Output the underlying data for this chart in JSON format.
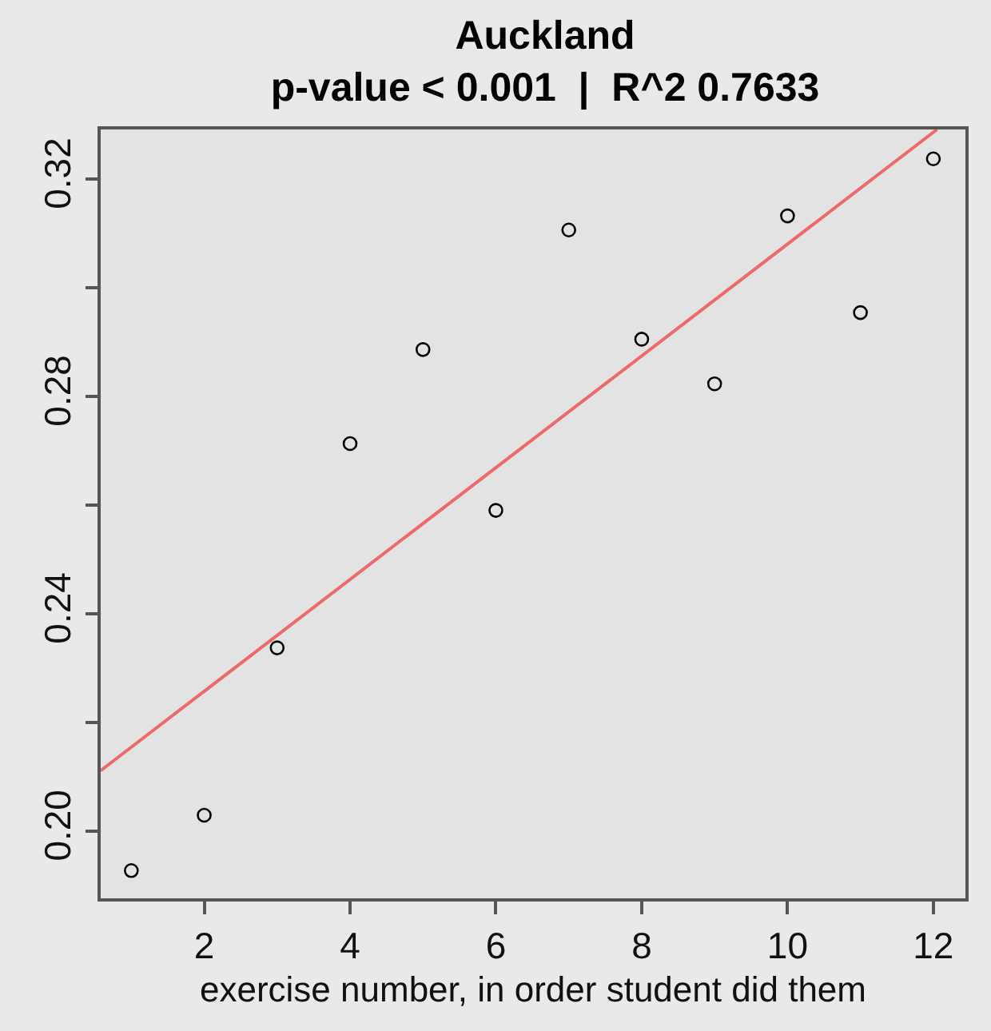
{
  "chart_data": {
    "type": "scatter",
    "title": "Auckland\np-value < 0.001  |  R^2 0.7633",
    "xlabel": "exercise number, in order student did them",
    "x": [
      1,
      2,
      3,
      4,
      5,
      6,
      7,
      8,
      9,
      10,
      11,
      12
    ],
    "series": [
      {
        "color": "#000000",
        "marker": "circle",
        "values": [
          0.1927,
          0.2029,
          0.2337,
          0.2713,
          0.2886,
          0.259,
          0.3106,
          0.2905,
          0.2823,
          0.3132,
          0.2954,
          0.3237
        ]
      },
      {
        "type": "line",
        "color": "#ee6a6a",
        "x": [
          0.58,
          12.05
        ],
        "values": [
          0.2111,
          0.3291
        ]
      }
    ],
    "xlim": [
      0.58,
      12.44
    ],
    "xticks": [
      2,
      4,
      6,
      8,
      10,
      12
    ],
    "ylim": [
      0.1876,
      0.3291
    ],
    "yticks": [
      {
        "value": 0.2,
        "label": "0.20"
      },
      {
        "value": 0.22,
        "label": null
      },
      0.24,
      {
        "value": 0.26,
        "label": null
      },
      0.28,
      {
        "value": 0.3,
        "label": null
      },
      0.32
    ],
    "grid": false
  }
}
